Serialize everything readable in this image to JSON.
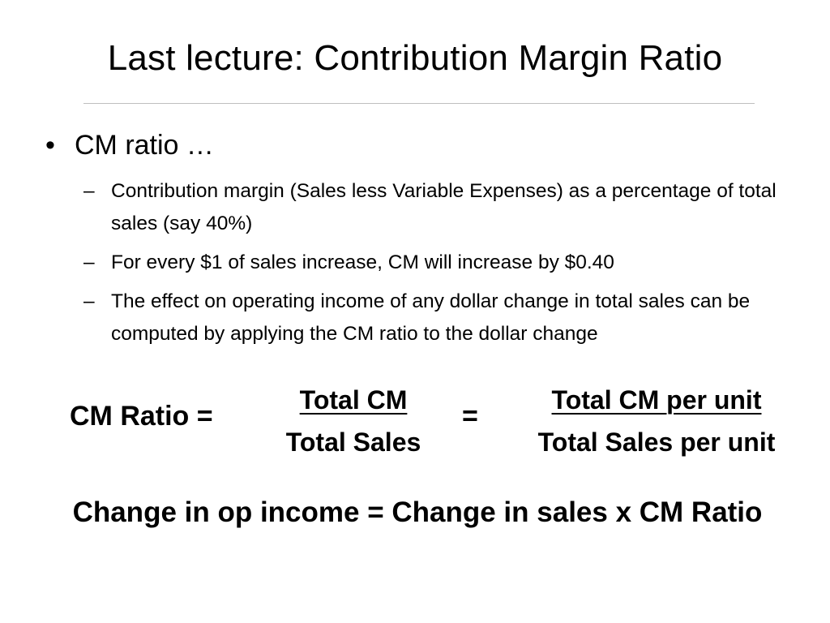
{
  "slide": {
    "title": "Last lecture: Contribution Margin Ratio",
    "bullet": {
      "marker": "•",
      "text": "CM ratio …"
    },
    "sub_bullets": [
      {
        "marker": "–",
        "text": "Contribution margin (Sales less Variable Expenses) as a percentage of total sales (say 40%)"
      },
      {
        "marker": "–",
        "text": "For every $1 of sales increase, CM will increase by $0.40"
      },
      {
        "marker": "–",
        "text": "The effect on operating income of any dollar change in total sales can be computed by applying the CM ratio to the dollar change"
      }
    ],
    "formula": {
      "label": "CM Ratio =",
      "fraction1": {
        "numerator": "Total CM",
        "denominator": "Total Sales"
      },
      "equals": "=",
      "fraction2": {
        "numerator": "Total CM per unit",
        "denominator": "Total Sales per unit"
      }
    },
    "change_formula": "Change in op income = Change in sales x CM Ratio"
  },
  "colors": {
    "text": "#000000",
    "background": "#ffffff",
    "rule": "#bfbfbf"
  }
}
